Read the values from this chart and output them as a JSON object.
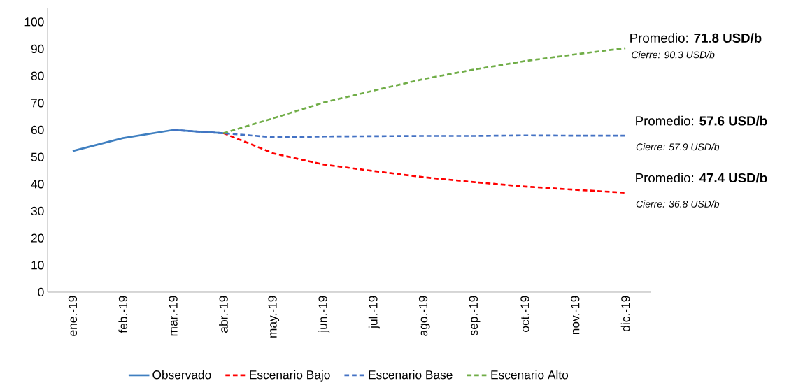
{
  "chart_data": {
    "type": "line",
    "categories": [
      "ene.-19",
      "feb.-19",
      "mar.-19",
      "abr.-19",
      "may.-19",
      "jun.-19",
      "jul.-19",
      "ago.-19",
      "sep.-19",
      "oct.-19",
      "nov.-19",
      "dic.-19"
    ],
    "series": [
      {
        "name": "Observado",
        "color": "#3f7fc0",
        "line_style": "solid",
        "values": [
          52.2,
          57,
          60,
          58.8,
          null,
          null,
          null,
          null,
          null,
          null,
          null,
          null
        ]
      },
      {
        "name": "Escenario Bajo",
        "color": "#ff0000",
        "line_style": "dashed",
        "values": [
          null,
          null,
          null,
          58.8,
          51.3,
          47.2,
          44.8,
          42.5,
          40.7,
          39.1,
          37.9,
          36.8
        ]
      },
      {
        "name": "Escenario Base",
        "color": "#4472c4",
        "line_style": "dashed",
        "values": [
          null,
          null,
          60,
          58.8,
          57.3,
          57.6,
          57.7,
          57.8,
          57.8,
          58,
          57.9,
          57.9
        ]
      },
      {
        "name": "Escenario Alto",
        "color": "#70ad47",
        "line_style": "dashed",
        "values": [
          null,
          null,
          null,
          58.8,
          64.4,
          70.2,
          74.6,
          78.9,
          82.4,
          85.5,
          88,
          90.3
        ]
      }
    ],
    "ylim": [
      0,
      105
    ],
    "yticks": [
      0,
      10,
      20,
      30,
      40,
      50,
      60,
      70,
      80,
      90,
      100
    ],
    "grid": false,
    "legend": "bottom",
    "marker": "none",
    "annotations": [
      "Promedio: **71.8 USD/b**",
      "*Cierre: 90.3 USD/b*",
      "Promedio: **57.6 USD/b**",
      "*Cierre: 57.9 USD/b*",
      "Promedio: **47.4 USD/b**",
      "*Cierre: 36.8 USD/b*"
    ]
  }
}
